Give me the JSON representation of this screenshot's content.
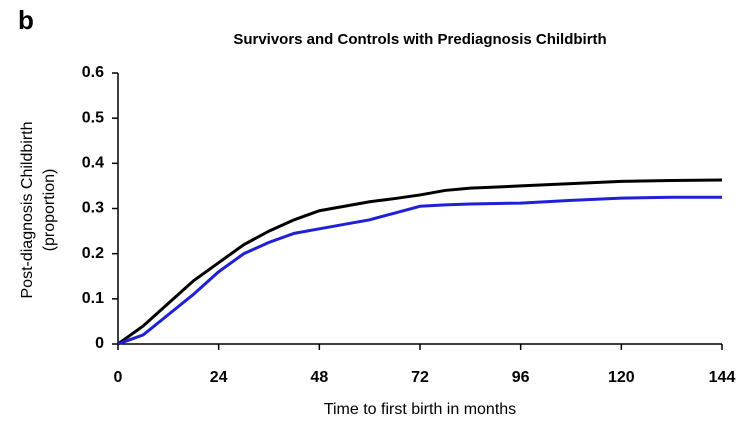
{
  "panel_label": "b",
  "chart_data": {
    "type": "line",
    "title": "Survivors and Controls with Prediagnosis Childbirth",
    "xlabel": "Time to first birth in months",
    "ylabel": [
      "Post-diagnosis Childbirth",
      "(proportion)"
    ],
    "x": [
      0,
      6,
      12,
      18,
      24,
      30,
      36,
      42,
      48,
      54,
      60,
      66,
      72,
      78,
      84,
      96,
      108,
      120,
      132,
      144
    ],
    "series": [
      {
        "color": "#000000",
        "values": [
          0,
          0.04,
          0.09,
          0.14,
          0.18,
          0.22,
          0.25,
          0.275,
          0.295,
          0.305,
          0.315,
          0.322,
          0.33,
          0.34,
          0.345,
          0.35,
          0.355,
          0.36,
          0.362,
          0.363
        ]
      },
      {
        "color": "#1f1fd6",
        "values": [
          0,
          0.02,
          0.065,
          0.11,
          0.16,
          0.2,
          0.225,
          0.245,
          0.255,
          0.265,
          0.275,
          0.29,
          0.305,
          0.308,
          0.31,
          0.312,
          0.318,
          0.323,
          0.325,
          0.325
        ]
      }
    ],
    "xlim": [
      0,
      144
    ],
    "xticks": [
      0,
      24,
      48,
      72,
      96,
      120,
      144
    ],
    "ylim": [
      0,
      0.6
    ],
    "yticks": [
      0,
      0.1,
      0.2,
      0.3,
      0.4,
      0.5,
      0.6
    ],
    "grid": false
  }
}
